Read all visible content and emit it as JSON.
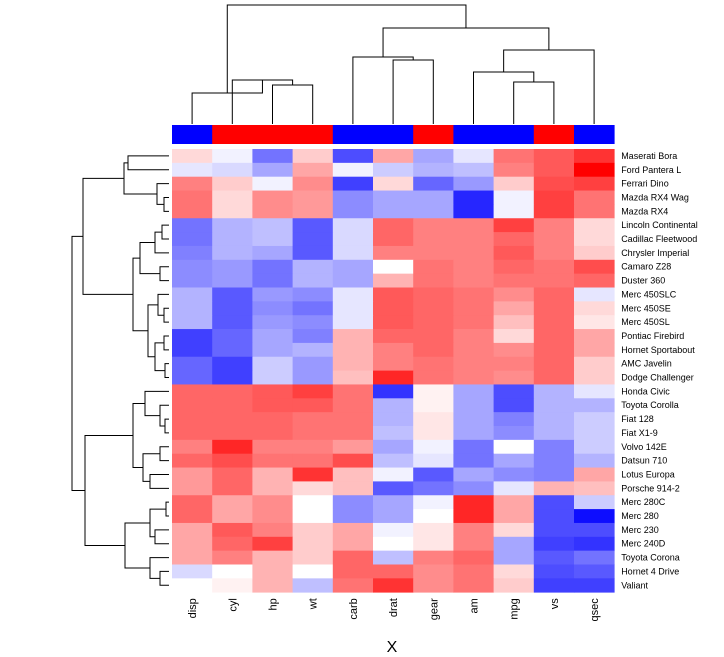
{
  "chart_data": {
    "type": "heatmap",
    "xlabel": "X",
    "columns": [
      "disp",
      "cyl",
      "hp",
      "wt",
      "carb",
      "drat",
      "gear",
      "am",
      "mpg",
      "vs",
      "qsec"
    ],
    "rows": [
      "Maserati Bora",
      "Ford Pantera L",
      "Ferrari Dino",
      "Mazda RX4 Wag",
      "Mazda RX4",
      "Lincoln Continental",
      "Cadillac Fleetwood",
      "Chrysler Imperial",
      "Camaro Z28",
      "Duster 360",
      "Merc 450SLC",
      "Merc 450SE",
      "Merc 450SL",
      "Pontiac Firebird",
      "Hornet Sportabout",
      "AMC Javelin",
      "Dodge Challenger",
      "Honda Civic",
      "Toyota Corolla",
      "Fiat 128",
      "Fiat X1-9",
      "Volvo 142E",
      "Datsun 710",
      "Lotus Europa",
      "Porsche 914-2",
      "Merc 280C",
      "Merc 280",
      "Merc 230",
      "Merc 240D",
      "Toyota Corona",
      "Hornet 4 Drive",
      "Valiant"
    ],
    "col_side_colors": [
      "#0000ff",
      "#ff0000",
      "#ff0000",
      "#ff0000",
      "#0000ff",
      "#0000ff",
      "#ff0000",
      "#0000ff",
      "#0000ff",
      "#ff0000",
      "#0000ff"
    ],
    "color_scale": {
      "low": "#0000ff",
      "mid": "#ffffff",
      "high": "#ff0000"
    },
    "values": [
      [
        0.15,
        -0.05,
        -0.55,
        0.2,
        -0.7,
        0.35,
        -0.35,
        -0.1,
        0.55,
        0.65,
        0.8
      ],
      [
        -0.1,
        -0.15,
        -0.35,
        0.35,
        -0.05,
        -0.2,
        -0.3,
        -0.25,
        0.5,
        0.65,
        1.0
      ],
      [
        0.5,
        0.2,
        -0.05,
        0.45,
        -0.75,
        0.15,
        -0.6,
        -0.4,
        0.2,
        0.7,
        0.75
      ],
      [
        0.55,
        0.15,
        0.45,
        0.4,
        -0.45,
        -0.35,
        -0.35,
        -0.85,
        -0.05,
        0.75,
        0.55
      ],
      [
        0.55,
        0.15,
        0.45,
        0.4,
        -0.45,
        -0.35,
        -0.35,
        -0.85,
        -0.05,
        0.75,
        0.55
      ],
      [
        -0.55,
        -0.3,
        -0.25,
        -0.65,
        -0.15,
        0.6,
        0.5,
        0.5,
        0.75,
        0.5,
        0.15
      ],
      [
        -0.55,
        -0.3,
        -0.25,
        -0.65,
        -0.15,
        0.6,
        0.5,
        0.5,
        0.6,
        0.5,
        0.15
      ],
      [
        -0.5,
        -0.3,
        -0.35,
        -0.65,
        -0.15,
        0.5,
        0.5,
        0.5,
        0.65,
        0.5,
        0.2
      ],
      [
        -0.45,
        -0.4,
        -0.55,
        -0.3,
        -0.35,
        0.0,
        0.55,
        0.5,
        0.6,
        0.55,
        0.7
      ],
      [
        -0.45,
        -0.4,
        -0.55,
        -0.3,
        -0.35,
        0.3,
        0.55,
        0.5,
        0.55,
        0.55,
        0.6
      ],
      [
        -0.3,
        -0.65,
        -0.4,
        -0.45,
        -0.1,
        0.65,
        0.6,
        0.55,
        0.45,
        0.6,
        -0.1
      ],
      [
        -0.3,
        -0.65,
        -0.45,
        -0.55,
        -0.1,
        0.65,
        0.6,
        0.55,
        0.35,
        0.6,
        0.15
      ],
      [
        -0.3,
        -0.65,
        -0.4,
        -0.45,
        -0.1,
        0.65,
        0.6,
        0.55,
        0.25,
        0.6,
        0.1
      ],
      [
        -0.75,
        -0.6,
        -0.35,
        -0.5,
        0.3,
        0.6,
        0.6,
        0.5,
        0.15,
        0.6,
        0.35
      ],
      [
        -0.75,
        -0.6,
        -0.35,
        -0.3,
        0.3,
        0.5,
        0.6,
        0.5,
        0.45,
        0.6,
        0.35
      ],
      [
        -0.6,
        -0.75,
        -0.2,
        -0.4,
        0.3,
        0.5,
        0.55,
        0.5,
        0.5,
        0.6,
        0.2
      ],
      [
        -0.6,
        -0.75,
        -0.2,
        -0.4,
        0.25,
        0.85,
        0.55,
        0.5,
        0.45,
        0.6,
        0.2
      ],
      [
        0.6,
        0.6,
        0.65,
        0.75,
        0.55,
        -0.8,
        0.05,
        -0.35,
        -0.7,
        -0.3,
        -0.1
      ],
      [
        0.6,
        0.6,
        0.65,
        0.65,
        0.55,
        -0.3,
        0.05,
        -0.35,
        -0.7,
        -0.3,
        -0.3
      ],
      [
        0.6,
        0.6,
        0.6,
        0.55,
        0.55,
        -0.3,
        0.1,
        -0.35,
        -0.5,
        -0.3,
        -0.2
      ],
      [
        0.6,
        0.6,
        0.6,
        0.55,
        0.55,
        -0.25,
        0.1,
        -0.35,
        -0.45,
        -0.3,
        -0.2
      ],
      [
        0.5,
        0.85,
        0.5,
        0.5,
        0.4,
        -0.35,
        -0.05,
        -0.55,
        0.0,
        -0.5,
        -0.2
      ],
      [
        0.6,
        0.7,
        0.55,
        0.55,
        0.7,
        -0.25,
        -0.1,
        -0.55,
        -0.35,
        -0.5,
        -0.3
      ],
      [
        0.4,
        0.6,
        0.3,
        0.8,
        0.25,
        -0.05,
        -0.65,
        -0.35,
        -0.45,
        -0.5,
        0.35
      ],
      [
        0.4,
        0.6,
        0.3,
        0.15,
        0.25,
        -0.65,
        -0.55,
        -0.45,
        -0.1,
        0.3,
        0.25
      ],
      [
        0.6,
        0.35,
        0.45,
        0.0,
        -0.45,
        -0.35,
        -0.05,
        0.85,
        0.35,
        -0.7,
        -0.2
      ],
      [
        0.6,
        0.35,
        0.45,
        0.0,
        -0.45,
        -0.35,
        0.0,
        0.85,
        0.35,
        -0.7,
        -0.95
      ],
      [
        0.35,
        0.65,
        0.5,
        0.2,
        0.35,
        -0.05,
        0.1,
        0.5,
        0.15,
        -0.7,
        -0.7
      ],
      [
        0.35,
        0.6,
        0.75,
        0.2,
        0.35,
        0.0,
        0.1,
        0.5,
        -0.35,
        -0.75,
        -0.8
      ],
      [
        0.35,
        0.5,
        0.3,
        0.2,
        0.6,
        -0.25,
        0.5,
        0.6,
        -0.35,
        -0.65,
        -0.55
      ],
      [
        -0.15,
        0.0,
        0.3,
        0.0,
        0.6,
        0.6,
        0.45,
        0.55,
        0.15,
        -0.7,
        -0.65
      ],
      [
        0.0,
        0.05,
        0.3,
        -0.25,
        0.55,
        0.8,
        0.45,
        0.55,
        0.2,
        -0.75,
        -0.75
      ]
    ]
  }
}
